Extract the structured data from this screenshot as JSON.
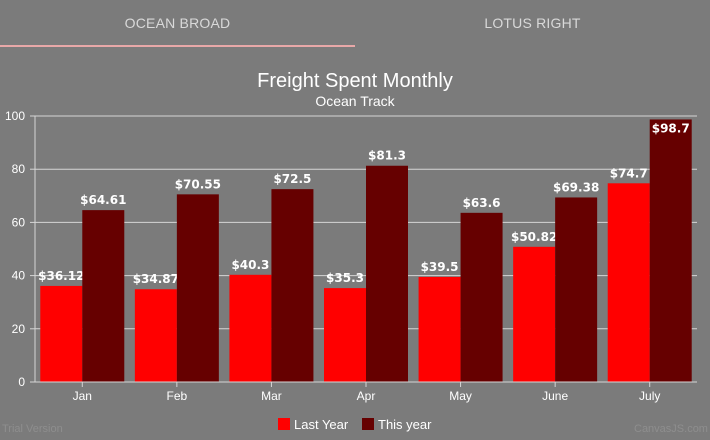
{
  "tabs": [
    {
      "label": "OCEAN BROAD",
      "active": true
    },
    {
      "label": "LOTUS RIGHT",
      "active": false
    }
  ],
  "colors": {
    "background": "#7b7b7b",
    "tab_underline": "#e8a8a8",
    "last_year": "#ff0000",
    "this_year": "#660000"
  },
  "chart_data": {
    "type": "bar",
    "title": "Freight Spent Monthly",
    "subtitle": "Ocean Track",
    "categories": [
      "Jan",
      "Feb",
      "Mar",
      "Apr",
      "May",
      "June",
      "July"
    ],
    "series": [
      {
        "name": "Last Year",
        "color": "#ff0000",
        "values": [
          36.12,
          34.87,
          40.3,
          35.3,
          39.5,
          50.82,
          74.7
        ]
      },
      {
        "name": "This year",
        "color": "#660000",
        "values": [
          64.61,
          70.55,
          72.5,
          81.3,
          63.6,
          69.38,
          98.7
        ]
      }
    ],
    "value_labels": [
      [
        "$36.12",
        "$34.87",
        "$40.3",
        "$35.3",
        "$39.5",
        "$50.82",
        "$74.7"
      ],
      [
        "$64.61",
        "$70.55",
        "$72.5",
        "$81.3",
        "$63.6",
        "$69.38",
        "$98.7"
      ]
    ],
    "ylim": [
      0,
      100
    ],
    "yticks": [
      0,
      20,
      40,
      60,
      80,
      100
    ],
    "grid": true,
    "legend_position": "bottom-center"
  },
  "watermark": {
    "left": "Trial Version",
    "right": "CanvasJS.com"
  }
}
